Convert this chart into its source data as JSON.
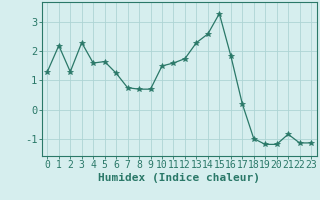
{
  "x": [
    0,
    1,
    2,
    3,
    4,
    5,
    6,
    7,
    8,
    9,
    10,
    11,
    12,
    13,
    14,
    15,
    16,
    17,
    18,
    19,
    20,
    21,
    22,
    23
  ],
  "y": [
    1.3,
    2.2,
    1.3,
    2.3,
    1.6,
    1.65,
    1.25,
    0.75,
    0.7,
    0.7,
    1.5,
    1.6,
    1.75,
    2.3,
    2.6,
    3.3,
    1.85,
    0.2,
    -1.0,
    -1.2,
    -1.2,
    -0.85,
    -1.15,
    -1.15
  ],
  "xlabel": "Humidex (Indice chaleur)",
  "ylim": [
    -1.6,
    3.7
  ],
  "xlim": [
    -0.5,
    23.5
  ],
  "yticks": [
    -1,
    0,
    1,
    2,
    3
  ],
  "xticks": [
    0,
    1,
    2,
    3,
    4,
    5,
    6,
    7,
    8,
    9,
    10,
    11,
    12,
    13,
    14,
    15,
    16,
    17,
    18,
    19,
    20,
    21,
    22,
    23
  ],
  "line_color": "#2a7868",
  "marker": "*",
  "marker_size": 4,
  "bg_color": "#d6eeee",
  "grid_color": "#aed4d4",
  "xlabel_fontsize": 8,
  "tick_fontsize": 7
}
